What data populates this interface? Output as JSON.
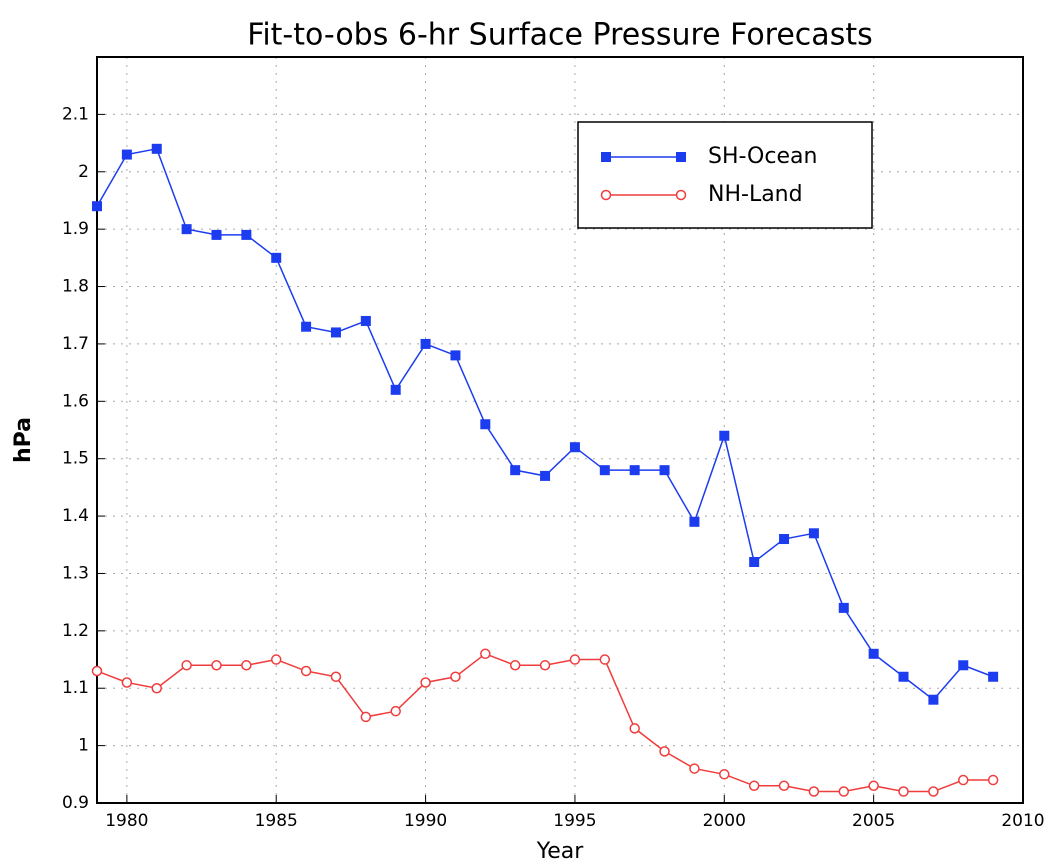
{
  "chart_data": {
    "type": "line",
    "title": "Fit-to-obs 6-hr Surface Pressure Forecasts",
    "x_label": "Year",
    "y_label": "hPa",
    "x": [
      1979,
      1980,
      1981,
      1982,
      1983,
      1984,
      1985,
      1986,
      1987,
      1988,
      1989,
      1990,
      1991,
      1992,
      1993,
      1994,
      1995,
      1996,
      1997,
      1998,
      1999,
      2000,
      2001,
      2002,
      2003,
      2004,
      2005,
      2006,
      2007,
      2008,
      2009
    ],
    "series": [
      {
        "name": "SH-Ocean",
        "color": "#1c3cf0",
        "marker": "square",
        "values": [
          1.94,
          2.03,
          2.04,
          1.9,
          1.89,
          1.89,
          1.85,
          1.73,
          1.72,
          1.74,
          1.62,
          1.7,
          1.68,
          1.56,
          1.48,
          1.47,
          1.52,
          1.48,
          1.48,
          1.48,
          1.39,
          1.54,
          1.32,
          1.36,
          1.37,
          1.24,
          1.16,
          1.12,
          1.08,
          1.14,
          1.12
        ]
      },
      {
        "name": "NH-Land",
        "color": "#f03c3c",
        "marker": "open-circle",
        "values": [
          1.13,
          1.11,
          1.1,
          1.14,
          1.14,
          1.14,
          1.15,
          1.13,
          1.12,
          1.05,
          1.06,
          1.11,
          1.12,
          1.16,
          1.14,
          1.14,
          1.15,
          1.15,
          1.03,
          0.99,
          0.96,
          0.95,
          0.93,
          0.93,
          0.92,
          0.92,
          0.93,
          0.92,
          0.92,
          0.94,
          0.94
        ]
      }
    ],
    "xlim": [
      1979,
      2010
    ],
    "xticks": [
      1980,
      1985,
      1990,
      1995,
      2000,
      2005,
      2010
    ],
    "ylim": [
      0.9,
      2.2
    ],
    "yticks": [
      0.9,
      1,
      1.1,
      1.2,
      1.3,
      1.4,
      1.5,
      1.6,
      1.7,
      1.8,
      1.9,
      2,
      2.1
    ],
    "grid": true,
    "legend": "upper right"
  }
}
